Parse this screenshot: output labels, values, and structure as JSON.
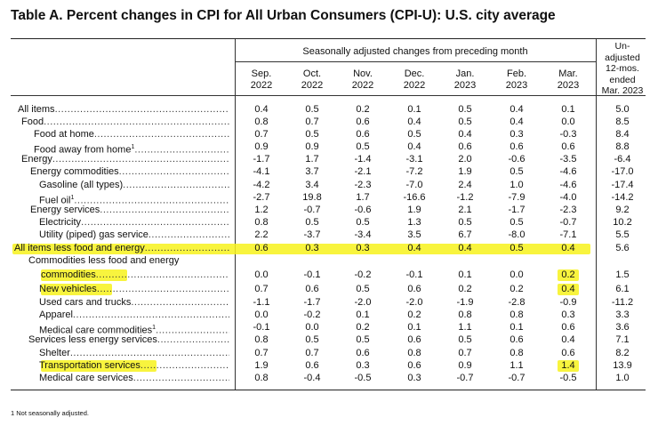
{
  "title": "Table A. Percent changes in CPI for All Urban Consumers (CPI-U): U.S. city average",
  "header": {
    "seasonal": "Seasonally adjusted changes from preceding month",
    "unadjusted": [
      "Un-",
      "adjusted",
      "12-mos.",
      "ended",
      "Mar. 2023"
    ],
    "months": [
      {
        "m": "Sep.",
        "y": "2022"
      },
      {
        "m": "Oct.",
        "y": "2022"
      },
      {
        "m": "Nov.",
        "y": "2022"
      },
      {
        "m": "Dec.",
        "y": "2022"
      },
      {
        "m": "Jan.",
        "y": "2023"
      },
      {
        "m": "Feb.",
        "y": "2023"
      },
      {
        "m": "Mar.",
        "y": "2023"
      }
    ]
  },
  "rows": [
    {
      "label": "All items",
      "values": [
        "0.4",
        "0.5",
        "0.2",
        "0.1",
        "0.5",
        "0.4",
        "0.1",
        "5.0"
      ]
    },
    {
      "label": "Food",
      "values": [
        "0.8",
        "0.7",
        "0.6",
        "0.4",
        "0.5",
        "0.4",
        "0.0",
        "8.5"
      ]
    },
    {
      "label": "Food at home",
      "values": [
        "0.7",
        "0.5",
        "0.6",
        "0.5",
        "0.4",
        "0.3",
        "-0.3",
        "8.4"
      ]
    },
    {
      "label": "Food away from home",
      "sup": "1",
      "values": [
        "0.9",
        "0.9",
        "0.5",
        "0.4",
        "0.6",
        "0.6",
        "0.6",
        "8.8"
      ]
    },
    {
      "label": "Energy",
      "values": [
        "-1.7",
        "1.7",
        "-1.4",
        "-3.1",
        "2.0",
        "-0.6",
        "-3.5",
        "-6.4"
      ]
    },
    {
      "label": "Energy commodities",
      "values": [
        "-4.1",
        "3.7",
        "-2.1",
        "-7.2",
        "1.9",
        "0.5",
        "-4.6",
        "-17.0"
      ]
    },
    {
      "label": "Gasoline (all types)",
      "values": [
        "-4.2",
        "3.4",
        "-2.3",
        "-7.0",
        "2.4",
        "1.0",
        "-4.6",
        "-17.4"
      ]
    },
    {
      "label": "Fuel oil",
      "sup": "1",
      "values": [
        "-2.7",
        "19.8",
        "1.7",
        "-16.6",
        "-1.2",
        "-7.9",
        "-4.0",
        "-14.2"
      ]
    },
    {
      "label": "Energy services",
      "values": [
        "1.2",
        "-0.7",
        "-0.6",
        "1.9",
        "2.1",
        "-1.7",
        "-2.3",
        "9.2"
      ]
    },
    {
      "label": "Electricity",
      "values": [
        "0.8",
        "0.5",
        "0.5",
        "1.3",
        "0.5",
        "0.5",
        "-0.7",
        "10.2"
      ]
    },
    {
      "label": "Utility (piped) gas service",
      "values": [
        "2.2",
        "-3.7",
        "-3.4",
        "3.5",
        "6.7",
        "-8.0",
        "-7.1",
        "5.5"
      ]
    },
    {
      "label": "All items less food and energy",
      "values": [
        "0.6",
        "0.3",
        "0.3",
        "0.4",
        "0.4",
        "0.5",
        "0.4",
        "5.6"
      ]
    },
    {
      "label": "Commodities less food and energy",
      "label2": "commodities",
      "values": [
        "0.0",
        "-0.1",
        "-0.2",
        "-0.1",
        "0.1",
        "0.0",
        "0.2",
        "1.5"
      ]
    },
    {
      "label": "New vehicles",
      "values": [
        "0.7",
        "0.6",
        "0.5",
        "0.6",
        "0.2",
        "0.2",
        "0.4",
        "6.1"
      ]
    },
    {
      "label": "Used cars and trucks",
      "values": [
        "-1.1",
        "-1.7",
        "-2.0",
        "-2.0",
        "-1.9",
        "-2.8",
        "-0.9",
        "-11.2"
      ]
    },
    {
      "label": "Apparel",
      "values": [
        "0.0",
        "-0.2",
        "0.1",
        "0.2",
        "0.8",
        "0.8",
        "0.3",
        "3.3"
      ]
    },
    {
      "label": "Medical care commodities",
      "sup": "1",
      "values": [
        "-0.1",
        "0.0",
        "0.2",
        "0.1",
        "1.1",
        "0.1",
        "0.6",
        "3.6"
      ]
    },
    {
      "label": "Services less energy services",
      "values": [
        "0.8",
        "0.5",
        "0.5",
        "0.6",
        "0.5",
        "0.6",
        "0.4",
        "7.1"
      ]
    },
    {
      "label": "Shelter",
      "values": [
        "0.7",
        "0.7",
        "0.6",
        "0.8",
        "0.7",
        "0.8",
        "0.6",
        "8.2"
      ]
    },
    {
      "label": "Transportation services",
      "values": [
        "1.9",
        "0.6",
        "0.3",
        "0.6",
        "0.9",
        "1.1",
        "1.4",
        "13.9"
      ]
    },
    {
      "label": "Medical care services",
      "values": [
        "0.8",
        "-0.4",
        "-0.5",
        "0.3",
        "-0.7",
        "-0.7",
        "-0.5",
        "1.0"
      ]
    }
  ],
  "footnote": "1  Not seasonally adjusted.",
  "colors": {
    "highlight": "#f7f21c",
    "text": "#111111"
  }
}
